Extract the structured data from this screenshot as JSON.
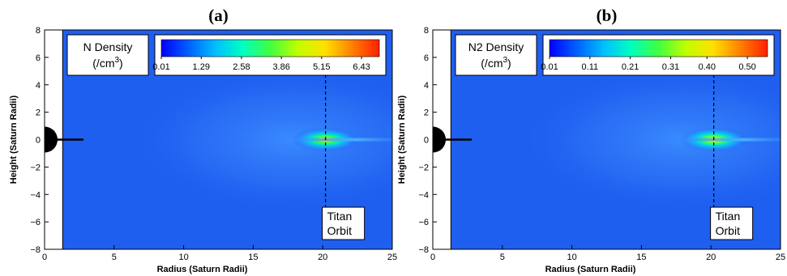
{
  "chart_data": [
    {
      "type": "heatmap",
      "panel_label": "(a)",
      "title": "",
      "xlabel": "Radius (Saturn Radii)",
      "ylabel": "Height (Saturn Radii)",
      "xlim": [
        0,
        25
      ],
      "ylim": [
        -8,
        8
      ],
      "x_ticks": [
        "0",
        "5",
        "10",
        "15",
        "20",
        "25"
      ],
      "y_ticks": [
        "8",
        "6",
        "4",
        "2",
        "0",
        "-2",
        "-4",
        "-6",
        "-8"
      ],
      "quantity_label": "N Density",
      "quantity_unit": "(/cm",
      "quantity_unit_exp": "3",
      "quantity_unit_close": ")",
      "colorbar": {
        "min": 0.01,
        "max": 7.0,
        "tick_labels": [
          "0.01",
          "1.29",
          "2.58",
          "3.86",
          "5.15",
          "6.43"
        ],
        "colors": [
          "#0000ff",
          "#0060ff",
          "#00c0ff",
          "#00ffc0",
          "#40ff40",
          "#c0ff00",
          "#ffe000",
          "#ff8000",
          "#ff2000"
        ]
      },
      "background_value_color": "#1f5ff0",
      "titan_orbit_radius": 20.2,
      "annotation_line1": "Titan",
      "annotation_line2": "Orbit",
      "peak": {
        "x": 20.2,
        "y": 0
      }
    },
    {
      "type": "heatmap",
      "panel_label": "(b)",
      "title": "",
      "xlabel": "Radius (Saturn Radii)",
      "ylabel": "Height (Saturn Radii)",
      "xlim": [
        0,
        25
      ],
      "ylim": [
        -8,
        8
      ],
      "x_ticks": [
        "0",
        "5",
        "10",
        "15",
        "20",
        "25"
      ],
      "y_ticks": [
        "8",
        "6",
        "4",
        "2",
        "0",
        "-2",
        "-4",
        "-6",
        "-8"
      ],
      "quantity_label": "N2 Density",
      "quantity_unit": "(/cm",
      "quantity_unit_exp": "3",
      "quantity_unit_close": ")",
      "colorbar": {
        "min": 0.01,
        "max": 0.55,
        "tick_labels": [
          "0.01",
          "0.11",
          "0.21",
          "0.31",
          "0.40",
          "0.50"
        ],
        "colors": [
          "#0000ff",
          "#0060ff",
          "#00c0ff",
          "#00ffc0",
          "#40ff40",
          "#c0ff00",
          "#ffe000",
          "#ff8000",
          "#ff2000"
        ]
      },
      "background_value_color": "#1f5ff0",
      "titan_orbit_radius": 20.2,
      "annotation_line1": "Titan",
      "annotation_line2": "Orbit",
      "peak": {
        "x": 20.2,
        "y": 0
      }
    }
  ]
}
